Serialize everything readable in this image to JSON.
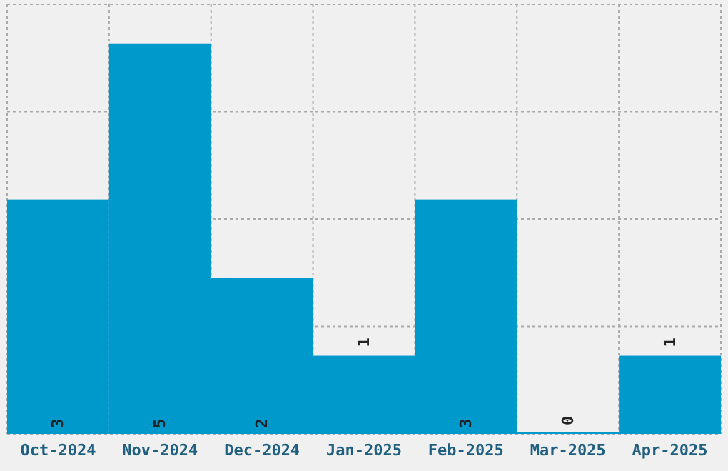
{
  "chart_data": {
    "type": "bar",
    "categories": [
      "Oct-2024",
      "Nov-2024",
      "Dec-2024",
      "Jan-2025",
      "Feb-2025",
      "Mar-2025",
      "Apr-2025"
    ],
    "values": [
      3,
      5,
      2,
      1,
      3,
      0,
      1
    ],
    "color": "#0099cc",
    "data_labels": true,
    "grid": true,
    "tick_labels": "x",
    "ylim": [
      0,
      5.5
    ],
    "yticks": [
      {
        "value": 0,
        "label": null
      },
      {
        "value": 1.375,
        "label": null
      },
      {
        "value": 2.75,
        "label": null
      },
      {
        "value": 4.125,
        "label": null
      },
      {
        "value": 5.5,
        "label": null
      }
    ]
  }
}
